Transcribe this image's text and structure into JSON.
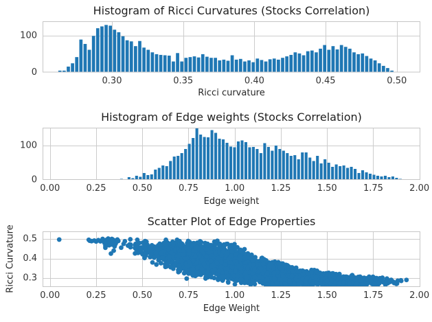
{
  "figure": {
    "background": "#ffffff",
    "accent_color": "#1f77b4",
    "grid_color": "#cccccc",
    "spine_color": "#c6c6c6",
    "title_color": "#1f1f1f",
    "tick_color": "#333333"
  },
  "chart_data": [
    {
      "type": "bar",
      "title": "Histogram of Ricci Curvatures (Stocks Correlation)",
      "xlabel": "Ricci curvature",
      "ylabel": "",
      "xlim": [
        0.2513,
        0.5165
      ],
      "ylim": [
        0,
        140
      ],
      "xticks": [
        0.3,
        0.35,
        0.4,
        0.45,
        0.5
      ],
      "xtick_labels": [
        "0.30",
        "0.35",
        "0.40",
        "0.45",
        "0.50"
      ],
      "yticks": [
        0,
        100
      ],
      "ytick_labels": [
        "0",
        "100"
      ],
      "grid": true,
      "legend": "none",
      "bin_start": 0.262,
      "bin_width": 0.00295,
      "values": [
        5,
        5,
        16,
        25,
        42,
        90,
        78,
        62,
        100,
        121,
        126,
        130,
        128,
        117,
        110,
        99,
        88,
        85,
        72,
        86,
        68,
        62,
        55,
        50,
        48,
        47,
        46,
        30,
        53,
        30,
        40,
        42,
        44,
        41,
        50,
        43,
        40,
        40,
        33,
        35,
        32,
        47,
        35,
        37,
        30,
        33,
        28,
        38,
        34,
        30,
        36,
        38,
        35,
        40,
        44,
        48,
        55,
        52,
        47,
        58,
        60,
        55,
        65,
        75,
        62,
        72,
        63,
        75,
        70,
        65,
        55,
        50,
        52,
        45,
        38,
        33,
        25,
        18,
        12,
        5
      ]
    },
    {
      "type": "bar",
      "title": "Histogram of Edge weights (Stocks Correlation)",
      "xlabel": "Edge weight",
      "ylabel": "",
      "xlim": [
        -0.04,
        2.005
      ],
      "ylim": [
        0,
        152
      ],
      "xticks": [
        0,
        0.25,
        0.5,
        0.75,
        1.0,
        1.25,
        1.5,
        1.75,
        2.0
      ],
      "xtick_labels": [
        "0.00",
        "0.25",
        "0.50",
        "0.75",
        "1.00",
        "1.25",
        "1.50",
        "1.75",
        "2.00"
      ],
      "yticks": [
        0,
        100
      ],
      "ytick_labels": [
        "0",
        "100"
      ],
      "grid": true,
      "legend": "none",
      "bin_start": 0.275,
      "bin_width": 0.0204,
      "values": [
        2,
        0,
        1,
        2,
        1,
        3,
        2,
        8,
        5,
        12,
        9,
        20,
        14,
        16,
        30,
        35,
        42,
        40,
        55,
        68,
        70,
        78,
        90,
        105,
        122,
        150,
        132,
        125,
        124,
        145,
        137,
        120,
        118,
        108,
        97,
        95,
        112,
        115,
        110,
        95,
        96,
        90,
        78,
        107,
        96,
        85,
        100,
        90,
        85,
        78,
        70,
        72,
        60,
        80,
        80,
        65,
        55,
        70,
        48,
        60,
        50,
        38,
        45,
        40,
        42,
        35,
        38,
        32,
        20,
        28,
        22,
        18,
        15,
        12,
        10,
        12,
        8,
        10,
        6,
        3
      ]
    },
    {
      "type": "scatter",
      "title": "Scatter Plot of Edge Properties",
      "xlabel": "Edge Weight",
      "ylabel": "Ricci Curvature",
      "xlim": [
        -0.04,
        2.005
      ],
      "ylim": [
        0.254,
        0.539
      ],
      "xticks": [
        0,
        0.25,
        0.5,
        0.75,
        1.0,
        1.25,
        1.5,
        1.75,
        2.0
      ],
      "xtick_labels": [
        "0.00",
        "0.25",
        "0.50",
        "0.75",
        "1.00",
        "1.25",
        "1.50",
        "1.75",
        "2.00"
      ],
      "yticks": [
        0.3,
        0.4,
        0.5
      ],
      "ytick_labels": [
        "0.3",
        "0.4",
        "0.5"
      ],
      "grid": true,
      "legend": "none",
      "marker_radius": 3.4,
      "n_points": 3000,
      "seed": 42,
      "outlier_points": [
        [
          0.05,
          0.497
        ],
        [
          0.21,
          0.496
        ],
        [
          0.215,
          0.491
        ],
        [
          0.225,
          0.489
        ],
        [
          0.24,
          0.492
        ],
        [
          0.25,
          0.487
        ],
        [
          0.262,
          0.494
        ],
        [
          0.273,
          0.488
        ],
        [
          0.285,
          0.5
        ],
        [
          0.29,
          0.494
        ],
        [
          0.295,
          0.48
        ],
        [
          0.3,
          0.49
        ],
        [
          0.3,
          0.465
        ],
        [
          0.3,
          0.455
        ],
        [
          0.305,
          0.495
        ],
        [
          0.31,
          0.478
        ],
        [
          0.315,
          0.502
        ],
        [
          0.315,
          0.47
        ],
        [
          0.32,
          0.493
        ],
        [
          0.32,
          0.468
        ],
        [
          0.325,
          0.488
        ],
        [
          0.33,
          0.425
        ],
        [
          0.335,
          0.5
        ],
        [
          0.335,
          0.472
        ],
        [
          0.34,
          0.497
        ],
        [
          0.345,
          0.486
        ],
        [
          0.345,
          0.44
        ],
        [
          0.35,
          0.462
        ],
        [
          0.355,
          0.492
        ],
        [
          0.355,
          0.475
        ],
        [
          0.36,
          0.485
        ],
        [
          0.365,
          0.497
        ],
        [
          0.37,
          0.49
        ],
        [
          0.74,
          0.297
        ],
        [
          1.9,
          0.288
        ],
        [
          1.93,
          0.29
        ]
      ],
      "band": {
        "x": [
          0.36,
          0.45,
          0.5,
          0.55,
          0.6,
          0.65,
          0.7,
          0.75,
          0.8,
          0.85,
          0.9,
          0.95,
          1.0,
          1.04,
          1.08,
          1.12,
          1.18,
          1.25,
          1.32,
          1.4,
          1.5,
          1.6,
          1.7,
          1.8,
          1.91
        ],
        "upper": [
          0.505,
          0.504,
          0.503,
          0.502,
          0.502,
          0.501,
          0.5,
          0.498,
          0.495,
          0.493,
          0.492,
          0.488,
          0.48,
          0.46,
          0.435,
          0.418,
          0.4,
          0.382,
          0.363,
          0.347,
          0.332,
          0.32,
          0.312,
          0.306,
          0.298
        ],
        "lower": [
          0.455,
          0.425,
          0.395,
          0.372,
          0.352,
          0.335,
          0.318,
          0.305,
          0.293,
          0.285,
          0.277,
          0.269,
          0.262,
          0.259,
          0.257,
          0.255,
          0.253,
          0.252,
          0.251,
          0.25,
          0.25,
          0.252,
          0.254,
          0.257,
          0.262
        ]
      }
    }
  ]
}
